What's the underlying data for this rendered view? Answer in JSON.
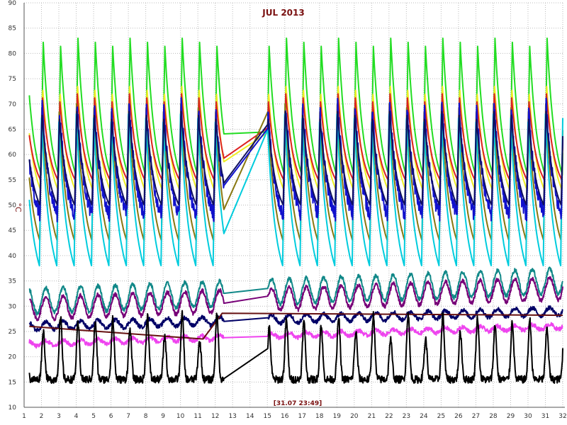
{
  "chart_data": {
    "type": "line",
    "title": "JUL 2013",
    "ylabel": "°C",
    "cursor_label": "[31.07 23:49]",
    "xlim": [
      1,
      32
    ],
    "ylim": [
      10,
      90
    ],
    "x_ticks": [
      1,
      2,
      3,
      4,
      5,
      6,
      7,
      8,
      9,
      10,
      11,
      12,
      13,
      14,
      15,
      16,
      17,
      18,
      19,
      20,
      21,
      22,
      23,
      24,
      25,
      26,
      27,
      28,
      29,
      30,
      31,
      32
    ],
    "y_ticks": [
      10,
      15,
      20,
      25,
      30,
      35,
      40,
      45,
      50,
      55,
      60,
      65,
      70,
      75,
      80,
      85,
      90
    ],
    "grid": true,
    "grid_style": "dotted",
    "background": "#ffffff",
    "series": [
      {
        "color": "#22dd22",
        "pattern": "daily",
        "peak": 83,
        "low": 56,
        "offset": 0.02,
        "min_peak": 74,
        "last": 57
      },
      {
        "color": "#eeee22",
        "pattern": "daily",
        "peak": 74,
        "low": 53,
        "offset": 0.05,
        "last": 58
      },
      {
        "color": "#dd2222",
        "pattern": "daily",
        "peak": 72,
        "low": 55,
        "offset": 0.06,
        "last": 62
      },
      {
        "color": "#887711",
        "pattern": "daily",
        "peak": 70,
        "low": 43,
        "offset": 0.1,
        "last": 50
      },
      {
        "color": "#00ccdd",
        "pattern": "daily",
        "peak": 68,
        "low": 38,
        "offset": 0.12,
        "last": 47
      },
      {
        "color": "#1111cc",
        "pattern": "daily",
        "peak": 70,
        "low": 48,
        "offset": 0.08,
        "noisy": true,
        "last": 58
      },
      {
        "color": "#101060",
        "pattern": "daily",
        "peak": 69,
        "low": 50,
        "offset": 0.09,
        "last": 57
      },
      {
        "color": "#118888",
        "pattern": "wave",
        "level": 31,
        "amp": 2.5,
        "drift": 4,
        "last": 34
      },
      {
        "color": "#770077",
        "pattern": "wave",
        "level": 29.5,
        "amp": 2.2,
        "drift": 4,
        "last": 33
      },
      {
        "color": "#000066",
        "pattern": "wave",
        "level": 26,
        "amp": 0.8,
        "drift": 3,
        "last": 29
      },
      {
        "color": "#ee44ee",
        "pattern": "wave",
        "level": 22.5,
        "amp": 0.5,
        "drift": 3.5,
        "last": 25
      },
      {
        "color": "#661111",
        "pattern": "segments",
        "points": [
          [
            1.3,
            26
          ],
          [
            11.3,
            23.5
          ],
          [
            12.4,
            28.6
          ],
          [
            32,
            28.2
          ]
        ]
      },
      {
        "color": "#000000",
        "pattern": "spiky",
        "base": 18,
        "peak": 31,
        "last": 20
      }
    ]
  }
}
